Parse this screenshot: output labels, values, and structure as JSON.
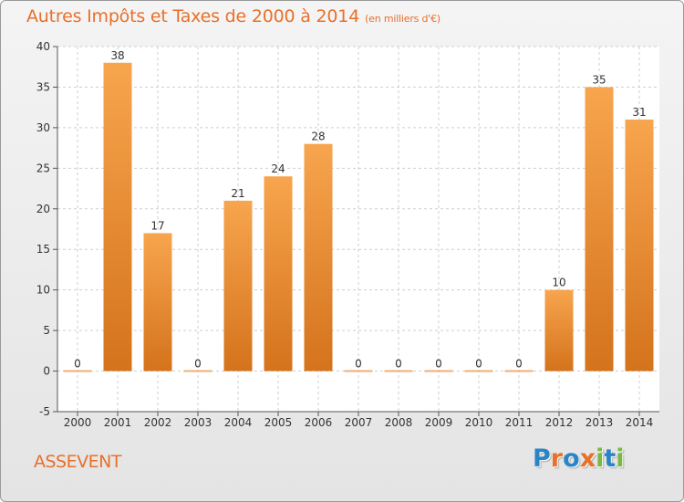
{
  "header": {
    "title": "Autres Impôts et Taxes de 2000 à 2014",
    "subtitle": "(en milliers d'€)"
  },
  "footer": {
    "commune": "ASSEVENT",
    "logo": {
      "text": "Proxiti",
      "letters": [
        {
          "char": "P",
          "color": "#2a84c6"
        },
        {
          "char": "r",
          "color": "#e8702a"
        },
        {
          "char": "o",
          "color": "#2a84c6"
        },
        {
          "char": "x",
          "color": "#e8702a"
        },
        {
          "char": "i",
          "color": "#7ab842"
        },
        {
          "char": "t",
          "color": "#2a84c6"
        },
        {
          "char": "i",
          "color": "#7ab842"
        }
      ]
    }
  },
  "chart_data": {
    "type": "bar",
    "categories": [
      "2000",
      "2001",
      "2002",
      "2003",
      "2004",
      "2005",
      "2006",
      "2007",
      "2008",
      "2009",
      "2010",
      "2011",
      "2012",
      "2013",
      "2014"
    ],
    "values": [
      0,
      38,
      17,
      0,
      21,
      24,
      28,
      0,
      0,
      0,
      0,
      0,
      10,
      35,
      31
    ],
    "data_labels": [
      "0",
      "38",
      "17",
      "0",
      "21",
      "24",
      "28",
      "0",
      "0",
      "0",
      "0",
      "0",
      "10",
      "35",
      "31"
    ],
    "title": "Autres Impôts et Taxes de 2000 à 2014",
    "subtitle": "(en milliers d'€)",
    "xlabel": "",
    "ylabel": "",
    "ylim": [
      -5,
      40
    ],
    "yticks": [
      -5,
      0,
      5,
      10,
      15,
      20,
      25,
      30,
      35,
      40
    ],
    "grid": true,
    "legend": "none",
    "colors": {
      "bar_light": "#f7a54e",
      "bar_dark": "#d4731c",
      "zero_bar": "#f0b070",
      "grid": "#cfcfcf",
      "plot_background": "#ffffff",
      "text": "#e8702a"
    }
  }
}
